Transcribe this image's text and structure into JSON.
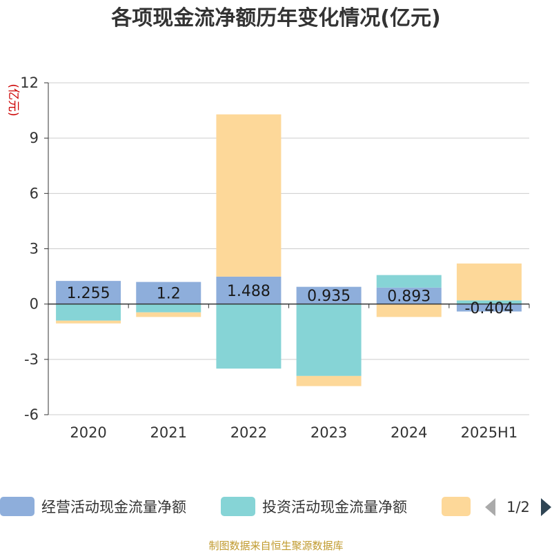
{
  "title": "各项现金流净额历年变化情况(亿元)",
  "source": "制图数据来自恒生聚源数据库",
  "chart_data": {
    "type": "bar",
    "stacked": true,
    "title": "各项现金流净额历年变化情况(亿元)",
    "ylabel": "(亿元)",
    "ylim": [
      -6,
      12
    ],
    "yticks": [
      -6,
      -3,
      0,
      3,
      6,
      9,
      12
    ],
    "ytick_labels": [
      "-6",
      "-3",
      "0",
      "3",
      "6",
      "9",
      "12"
    ],
    "grid": true,
    "categories": [
      "2020",
      "2021",
      "2022",
      "2023",
      "2024",
      "2025H1"
    ],
    "series": [
      {
        "name": "经营活动现金流量净额",
        "color": "#8eaedb",
        "values": [
          1.255,
          1.2,
          1.488,
          0.935,
          0.893,
          -0.404
        ],
        "labels": [
          "1.255",
          "1.2",
          "1.488",
          "0.935",
          "0.893",
          "-0.404"
        ]
      },
      {
        "name": "投资活动现金流量净额",
        "color": "#86d4d6",
        "values": [
          -0.9,
          -0.45,
          -3.5,
          -3.9,
          0.68,
          0.2
        ]
      },
      {
        "name": "",
        "color": "#fdd899",
        "values": [
          -0.15,
          -0.25,
          8.8,
          -0.55,
          -0.7,
          2.0
        ]
      }
    ],
    "legend": {
      "position": "bottom",
      "page": "1/2"
    }
  }
}
